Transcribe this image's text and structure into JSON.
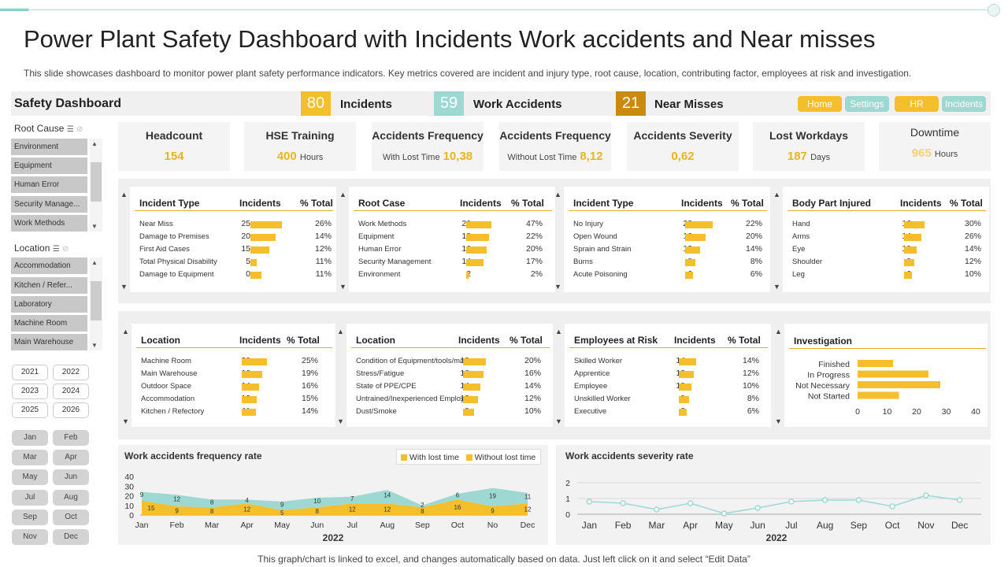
{
  "title": "Power Plant Safety Dashboard with Incidents Work accidents and Near misses",
  "subtitle": "This slide showcases dashboard to monitor power plant safety performance indicators. Key metrics covered are incident and injury type,  root cause, location, contributing factor, employees at risk and investigation.",
  "header": {
    "label": "Safety Dashboard",
    "kpis": [
      {
        "value": "80",
        "label": "Incidents",
        "color": "#f5be2c"
      },
      {
        "value": "59",
        "label": "Work Accidents",
        "color": "#9dd9d2"
      },
      {
        "value": "21",
        "label": "Near Misses",
        "color": "#c98a10"
      }
    ],
    "nav": [
      "Home",
      "Settings",
      "HR",
      "Incidents"
    ]
  },
  "slicers": {
    "root_cause": {
      "label": "Root Cause",
      "items": [
        "Environment",
        "Equipment",
        "Human Error",
        "Security Manage...",
        "Work Methods"
      ]
    },
    "location": {
      "label": "Location",
      "items": [
        "Accommodation",
        "Kitchen / Refer...",
        "Laboratory",
        "Machine Room",
        "Main Warehouse"
      ]
    },
    "years": [
      "2021",
      "2022",
      "2023",
      "2024",
      "2025",
      "2026"
    ],
    "months": [
      "Jan",
      "Feb",
      "Mar",
      "Apr",
      "May",
      "Jun",
      "Jul",
      "Aug",
      "Sep",
      "Oct",
      "Nov",
      "Dec"
    ]
  },
  "kpis": [
    {
      "title": "Headcount",
      "value": "154",
      "suffix": "",
      "prefix": ""
    },
    {
      "title": "HSE Training",
      "value": "400",
      "suffix": "Hours",
      "prefix": ""
    },
    {
      "title": "Accidents Frequency",
      "value": "10,38",
      "suffix": "",
      "prefix": "With Lost Time"
    },
    {
      "title": "Accidents Frequency",
      "value": "8,12",
      "suffix": "",
      "prefix": "Without Lost Time"
    },
    {
      "title": "Accidents Severity",
      "value": "0,62",
      "suffix": "",
      "prefix": ""
    },
    {
      "title": "Lost Workdays",
      "value": "187",
      "suffix": "Days",
      "prefix": ""
    },
    {
      "title": "Downtime",
      "value": "965",
      "suffix": "Hours",
      "prefix": ""
    }
  ],
  "tables_row1": [
    {
      "title": "Incident Type",
      "col1": "Incidents",
      "col2": "% Total",
      "rows": [
        {
          "label": "Near Miss",
          "n": 25,
          "pct": "26%"
        },
        {
          "label": "Damage to Premises",
          "n": 20,
          "pct": "14%"
        },
        {
          "label": "First Aid Cases",
          "n": 15,
          "pct": "12%"
        },
        {
          "label": "Total Physical Disability",
          "n": 5,
          "pct": "11%"
        },
        {
          "label": "Damage to Equipment",
          "n": 0,
          "pct": "11%"
        }
      ]
    },
    {
      "title": "Root Case",
      "col1": "Incidents",
      "col2": "% Total",
      "rows": [
        {
          "label": "Work Methods",
          "n": 20,
          "pct": "47%"
        },
        {
          "label": "Equipment",
          "n": 18,
          "pct": "22%"
        },
        {
          "label": "Human Error",
          "n": 16,
          "pct": "20%"
        },
        {
          "label": "Security Management",
          "n": 14,
          "pct": "17%"
        },
        {
          "label": "Environment",
          "n": 2,
          "pct": "2%"
        }
      ]
    },
    {
      "title": "Incident Type",
      "col1": "Incidents",
      "col2": "% Total",
      "rows": [
        {
          "label": "No Injury",
          "n": 22,
          "pct": "22%"
        },
        {
          "label": "Open Wound",
          "n": 16,
          "pct": "20%"
        },
        {
          "label": "Sprain and Strain",
          "n": 12,
          "pct": "14%"
        },
        {
          "label": "Burns",
          "n": 8,
          "pct": "8%"
        },
        {
          "label": "Acute Poisoning",
          "n": 6,
          "pct": "6%"
        }
      ]
    },
    {
      "title": "Body Part Injured",
      "col1": "Incidents",
      "col2": "% Total",
      "rows": [
        {
          "label": "Hand",
          "n": 16,
          "pct": "30%"
        },
        {
          "label": "Arms",
          "n": 14,
          "pct": "26%"
        },
        {
          "label": "Eye",
          "n": 10,
          "pct": "14%"
        },
        {
          "label": "Shoulder",
          "n": 8,
          "pct": "12%"
        },
        {
          "label": "Leg",
          "n": 6,
          "pct": "10%"
        }
      ]
    }
  ],
  "tables_row2": [
    {
      "title": "Location",
      "col1": "Incidents",
      "col2": "% Total",
      "rows": [
        {
          "label": "Machine Room",
          "n": 20,
          "pct": "25%"
        },
        {
          "label": "Main Warehouse",
          "n": 16,
          "pct": "19%"
        },
        {
          "label": "Outdoor Space",
          "n": 14,
          "pct": "16%"
        },
        {
          "label": "Accommodation",
          "n": 12,
          "pct": "15%"
        },
        {
          "label": "Kitchen / Refectory",
          "n": 11,
          "pct": "14%"
        }
      ]
    },
    {
      "title": "Location",
      "col1": "Incidents",
      "col2": "% Total",
      "rows": [
        {
          "label": "Condition of Equipment/tools/mac",
          "n": 18,
          "pct": "20%"
        },
        {
          "label": "Stress/Fatigue",
          "n": 16,
          "pct": "16%"
        },
        {
          "label": "State of PPE/CPE",
          "n": 14,
          "pct": "14%"
        },
        {
          "label": "Untrained/Inexperienced   Employee",
          "n": 12,
          "pct": "12%"
        },
        {
          "label": "Dust/Smoke",
          "n": 9,
          "pct": "10%"
        }
      ]
    },
    {
      "title": "Employees at Risk",
      "col1": "Incidents",
      "col2": "% Total",
      "rows": [
        {
          "label": "Skilled Worker",
          "n": 14,
          "pct": "14%"
        },
        {
          "label": "Apprentice",
          "n": 12,
          "pct": "12%"
        },
        {
          "label": "Employee",
          "n": 10,
          "pct": "10%"
        },
        {
          "label": "Unskilled Worker",
          "n": 8,
          "pct": "8%"
        },
        {
          "label": "Executive",
          "n": 6,
          "pct": "6%"
        }
      ]
    }
  ],
  "investigation": {
    "title": "Investigation",
    "categories": [
      "Finished",
      "In Progress",
      "Not Necessary",
      "Not Started"
    ],
    "values": [
      12,
      24,
      28,
      14
    ],
    "ticks": [
      "0",
      "10",
      "20",
      "30",
      "40"
    ]
  },
  "chart_data": [
    {
      "type": "area",
      "title": "Work accidents frequency rate",
      "xlabel": "2022",
      "categories": [
        "Jan",
        "Feb",
        "Mar",
        "Apr",
        "May",
        "Jun",
        "Jul",
        "Aug",
        "Sep",
        "Oct",
        "No",
        "Dec"
      ],
      "series": [
        {
          "name": "With lost time",
          "values": [
            9,
            12,
            8,
            4,
            9,
            10,
            7,
            14,
            2,
            6,
            19,
            11
          ],
          "color": "#9dd9d2"
        },
        {
          "name": "Without lost time",
          "values": [
            15,
            9,
            8,
            12,
            5,
            8,
            12,
            12,
            8,
            16,
            9,
            12
          ],
          "color": "#f5be2c"
        }
      ],
      "ylim": [
        0,
        40
      ],
      "yticks": [
        "0",
        "10",
        "20",
        "30",
        "40"
      ],
      "stacked": true
    },
    {
      "type": "line",
      "title": "Work accidents severity rate",
      "xlabel": "2022",
      "categories": [
        "Jan",
        "Feb",
        "Mar",
        "Apr",
        "May",
        "Jun",
        "Jul",
        "Aug",
        "Sep",
        "Oct",
        "Nov",
        "Dec"
      ],
      "values": [
        0.8,
        0.7,
        0.3,
        0.7,
        0.05,
        0.4,
        0.8,
        0.9,
        0.9,
        0.5,
        1.2,
        0.9
      ],
      "ylim": [
        0,
        2
      ],
      "yticks": [
        "0",
        "1",
        "2"
      ],
      "grid": true,
      "color": "#9dd9d2"
    }
  ],
  "footer": "This graph/chart is linked to excel, and changes automatically based on data. Just left click on it and select “Edit Data”"
}
